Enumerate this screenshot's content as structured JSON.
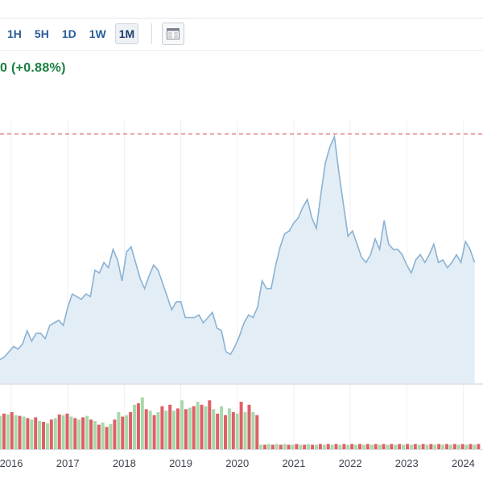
{
  "toolbar": {
    "timeframes": [
      "1H",
      "5H",
      "1D",
      "1W",
      "1M"
    ],
    "active": "1M",
    "table_icon": "table-view-icon"
  },
  "quote": {
    "change_text": "0 (+0.88%)"
  },
  "colors": {
    "line": "#8ab2d3",
    "area": "#e3edf6",
    "vol_up": "#a6d9ab",
    "vol_down": "#de6066",
    "ref_line": "#d9534f",
    "change_green": "#18803f",
    "link_blue": "#2a5c9a"
  },
  "chart_data": {
    "type": "area",
    "x_tick_labels": [
      "2016",
      "2017",
      "2018",
      "2019",
      "2020",
      "2021",
      "2022",
      "2023",
      "2024"
    ],
    "x_range": [
      2015.8,
      2024.35
    ],
    "y_range": [
      0,
      100
    ],
    "grid": "vertical",
    "reference_line": 95,
    "price_series": [
      [
        2015.8,
        9
      ],
      [
        2015.88,
        10
      ],
      [
        2015.96,
        12
      ],
      [
        2016.04,
        14
      ],
      [
        2016.12,
        13
      ],
      [
        2016.2,
        15
      ],
      [
        2016.28,
        20
      ],
      [
        2016.36,
        16
      ],
      [
        2016.44,
        19
      ],
      [
        2016.52,
        19
      ],
      [
        2016.6,
        17
      ],
      [
        2016.68,
        22
      ],
      [
        2016.76,
        23
      ],
      [
        2016.84,
        24
      ],
      [
        2016.92,
        22
      ],
      [
        2017.0,
        29
      ],
      [
        2017.08,
        34
      ],
      [
        2017.16,
        33
      ],
      [
        2017.24,
        32
      ],
      [
        2017.32,
        34
      ],
      [
        2017.4,
        33
      ],
      [
        2017.48,
        43
      ],
      [
        2017.56,
        42
      ],
      [
        2017.64,
        46
      ],
      [
        2017.72,
        44
      ],
      [
        2017.8,
        51
      ],
      [
        2017.88,
        47
      ],
      [
        2017.96,
        39
      ],
      [
        2018.04,
        50
      ],
      [
        2018.12,
        52
      ],
      [
        2018.2,
        46
      ],
      [
        2018.28,
        40
      ],
      [
        2018.36,
        36
      ],
      [
        2018.44,
        41
      ],
      [
        2018.52,
        45
      ],
      [
        2018.6,
        43
      ],
      [
        2018.68,
        38
      ],
      [
        2018.76,
        33
      ],
      [
        2018.84,
        28
      ],
      [
        2018.92,
        31
      ],
      [
        2019.0,
        31
      ],
      [
        2019.08,
        25
      ],
      [
        2019.16,
        25
      ],
      [
        2019.24,
        25
      ],
      [
        2019.32,
        26
      ],
      [
        2019.4,
        23
      ],
      [
        2019.48,
        25
      ],
      [
        2019.56,
        27
      ],
      [
        2019.64,
        21
      ],
      [
        2019.72,
        20
      ],
      [
        2019.8,
        12
      ],
      [
        2019.88,
        11
      ],
      [
        2019.96,
        14
      ],
      [
        2020.04,
        18
      ],
      [
        2020.12,
        23
      ],
      [
        2020.2,
        26
      ],
      [
        2020.28,
        25
      ],
      [
        2020.36,
        29
      ],
      [
        2020.44,
        39
      ],
      [
        2020.52,
        36
      ],
      [
        2020.6,
        36
      ],
      [
        2020.68,
        45
      ],
      [
        2020.76,
        52
      ],
      [
        2020.84,
        57
      ],
      [
        2020.92,
        58
      ],
      [
        2021.0,
        61
      ],
      [
        2021.08,
        63
      ],
      [
        2021.16,
        67
      ],
      [
        2021.24,
        70
      ],
      [
        2021.32,
        63
      ],
      [
        2021.4,
        59
      ],
      [
        2021.48,
        72
      ],
      [
        2021.56,
        84
      ],
      [
        2021.64,
        90
      ],
      [
        2021.72,
        94
      ],
      [
        2021.8,
        80
      ],
      [
        2021.88,
        68
      ],
      [
        2021.96,
        56
      ],
      [
        2022.04,
        58
      ],
      [
        2022.12,
        53
      ],
      [
        2022.2,
        48
      ],
      [
        2022.28,
        46
      ],
      [
        2022.36,
        49
      ],
      [
        2022.44,
        55
      ],
      [
        2022.52,
        51
      ],
      [
        2022.6,
        62
      ],
      [
        2022.68,
        53
      ],
      [
        2022.76,
        51
      ],
      [
        2022.84,
        51
      ],
      [
        2022.92,
        49
      ],
      [
        2023.0,
        45
      ],
      [
        2023.08,
        42
      ],
      [
        2023.16,
        47
      ],
      [
        2023.24,
        49
      ],
      [
        2023.32,
        46
      ],
      [
        2023.4,
        49
      ],
      [
        2023.48,
        53
      ],
      [
        2023.56,
        46
      ],
      [
        2023.64,
        47
      ],
      [
        2023.72,
        44
      ],
      [
        2023.8,
        46
      ],
      [
        2023.88,
        49
      ],
      [
        2023.96,
        46
      ],
      [
        2024.04,
        54
      ],
      [
        2024.12,
        51
      ],
      [
        2024.2,
        46
      ]
    ],
    "volume_series": [
      [
        2015.8,
        45,
        "up"
      ],
      [
        2015.87,
        48,
        "down"
      ],
      [
        2015.94,
        47,
        "up"
      ],
      [
        2016.01,
        50,
        "down"
      ],
      [
        2016.08,
        46,
        "up"
      ],
      [
        2016.15,
        45,
        "down"
      ],
      [
        2016.22,
        44,
        "up"
      ],
      [
        2016.29,
        42,
        "down"
      ],
      [
        2016.36,
        40,
        "up"
      ],
      [
        2016.43,
        43,
        "down"
      ],
      [
        2016.5,
        38,
        "up"
      ],
      [
        2016.57,
        37,
        "down"
      ],
      [
        2016.64,
        35,
        "up"
      ],
      [
        2016.71,
        40,
        "down"
      ],
      [
        2016.78,
        42,
        "up"
      ],
      [
        2016.85,
        47,
        "down"
      ],
      [
        2016.92,
        46,
        "up"
      ],
      [
        2016.99,
        48,
        "down"
      ],
      [
        2017.06,
        44,
        "up"
      ],
      [
        2017.13,
        42,
        "down"
      ],
      [
        2017.2,
        40,
        "up"
      ],
      [
        2017.27,
        43,
        "down"
      ],
      [
        2017.34,
        45,
        "up"
      ],
      [
        2017.41,
        40,
        "down"
      ],
      [
        2017.48,
        38,
        "up"
      ],
      [
        2017.55,
        33,
        "down"
      ],
      [
        2017.62,
        36,
        "up"
      ],
      [
        2017.69,
        30,
        "down"
      ],
      [
        2017.76,
        34,
        "up"
      ],
      [
        2017.83,
        40,
        "down"
      ],
      [
        2017.9,
        50,
        "up"
      ],
      [
        2017.97,
        44,
        "down"
      ],
      [
        2018.04,
        46,
        "up"
      ],
      [
        2018.11,
        50,
        "down"
      ],
      [
        2018.18,
        60,
        "up"
      ],
      [
        2018.25,
        62,
        "down"
      ],
      [
        2018.32,
        70,
        "up"
      ],
      [
        2018.39,
        54,
        "down"
      ],
      [
        2018.46,
        52,
        "up"
      ],
      [
        2018.53,
        46,
        "down"
      ],
      [
        2018.6,
        50,
        "up"
      ],
      [
        2018.67,
        58,
        "down"
      ],
      [
        2018.74,
        52,
        "up"
      ],
      [
        2018.81,
        60,
        "down"
      ],
      [
        2018.88,
        52,
        "up"
      ],
      [
        2018.95,
        55,
        "down"
      ],
      [
        2019.02,
        66,
        "up"
      ],
      [
        2019.09,
        54,
        "down"
      ],
      [
        2019.16,
        56,
        "up"
      ],
      [
        2019.23,
        58,
        "down"
      ],
      [
        2019.3,
        64,
        "up"
      ],
      [
        2019.37,
        60,
        "down"
      ],
      [
        2019.44,
        58,
        "up"
      ],
      [
        2019.51,
        66,
        "down"
      ],
      [
        2019.58,
        54,
        "up"
      ],
      [
        2019.65,
        48,
        "down"
      ],
      [
        2019.72,
        58,
        "up"
      ],
      [
        2019.79,
        46,
        "down"
      ],
      [
        2019.86,
        55,
        "up"
      ],
      [
        2019.93,
        50,
        "down"
      ],
      [
        2020.0,
        48,
        "up"
      ],
      [
        2020.07,
        64,
        "down"
      ],
      [
        2020.14,
        50,
        "up"
      ],
      [
        2020.21,
        60,
        "down"
      ],
      [
        2020.28,
        50,
        "up"
      ],
      [
        2020.35,
        46,
        "down"
      ],
      [
        2020.42,
        6,
        "up"
      ],
      [
        2020.49,
        6,
        "down"
      ],
      [
        2020.56,
        7,
        "up"
      ],
      [
        2020.63,
        6,
        "down"
      ],
      [
        2020.7,
        7,
        "up"
      ],
      [
        2020.77,
        6,
        "down"
      ],
      [
        2020.84,
        7,
        "up"
      ],
      [
        2020.91,
        6,
        "down"
      ],
      [
        2020.98,
        6,
        "up"
      ],
      [
        2021.05,
        7,
        "down"
      ],
      [
        2021.12,
        6,
        "up"
      ],
      [
        2021.19,
        6,
        "down"
      ],
      [
        2021.26,
        7,
        "up"
      ],
      [
        2021.33,
        6,
        "down"
      ],
      [
        2021.4,
        6,
        "up"
      ],
      [
        2021.47,
        7,
        "down"
      ],
      [
        2021.54,
        6,
        "up"
      ],
      [
        2021.61,
        7,
        "down"
      ],
      [
        2021.68,
        6,
        "up"
      ],
      [
        2021.75,
        7,
        "down"
      ],
      [
        2021.82,
        6,
        "up"
      ],
      [
        2021.89,
        7,
        "down"
      ],
      [
        2021.96,
        6,
        "up"
      ],
      [
        2022.03,
        7,
        "down"
      ],
      [
        2022.1,
        6,
        "up"
      ],
      [
        2022.17,
        7,
        "down"
      ],
      [
        2022.24,
        6,
        "up"
      ],
      [
        2022.31,
        7,
        "down"
      ],
      [
        2022.38,
        6,
        "up"
      ],
      [
        2022.45,
        7,
        "down"
      ],
      [
        2022.52,
        6,
        "up"
      ],
      [
        2022.59,
        7,
        "down"
      ],
      [
        2022.66,
        6,
        "up"
      ],
      [
        2022.73,
        7,
        "down"
      ],
      [
        2022.8,
        6,
        "up"
      ],
      [
        2022.87,
        7,
        "down"
      ],
      [
        2022.94,
        6,
        "up"
      ],
      [
        2023.01,
        7,
        "down"
      ],
      [
        2023.08,
        6,
        "up"
      ],
      [
        2023.15,
        7,
        "down"
      ],
      [
        2023.22,
        6,
        "up"
      ],
      [
        2023.29,
        7,
        "down"
      ],
      [
        2023.36,
        6,
        "up"
      ],
      [
        2023.43,
        7,
        "down"
      ],
      [
        2023.5,
        6,
        "up"
      ],
      [
        2023.57,
        7,
        "down"
      ],
      [
        2023.64,
        6,
        "up"
      ],
      [
        2023.71,
        7,
        "down"
      ],
      [
        2023.78,
        6,
        "up"
      ],
      [
        2023.85,
        7,
        "down"
      ],
      [
        2023.92,
        6,
        "up"
      ],
      [
        2023.99,
        7,
        "down"
      ],
      [
        2024.06,
        6,
        "up"
      ],
      [
        2024.13,
        7,
        "down"
      ],
      [
        2024.2,
        6,
        "up"
      ],
      [
        2024.27,
        7,
        "down"
      ]
    ]
  }
}
